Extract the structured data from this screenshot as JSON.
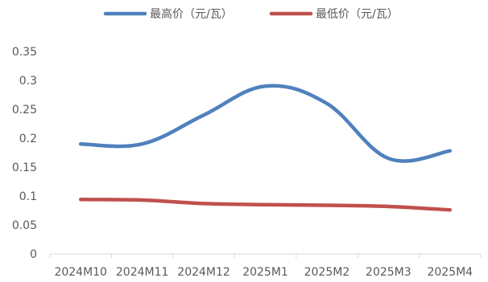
{
  "chart_data": {
    "type": "line",
    "title": "",
    "xlabel": "",
    "ylabel": "",
    "categories": [
      "2024M10",
      "2024M11",
      "2024M12",
      "2025M1",
      "2025M2",
      "2025M3",
      "2025M4"
    ],
    "ylim": [
      0,
      0.35
    ],
    "y_ticks": [
      "0",
      "0.05",
      "0.1",
      "0.15",
      "0.2",
      "0.25",
      "0.3",
      "0.35"
    ],
    "grid": false,
    "legend_position": "top",
    "series": [
      {
        "name": "最高价（元/瓦）",
        "color": "#4F81BD",
        "values": [
          0.19,
          0.19,
          0.24,
          0.29,
          0.26,
          0.165,
          0.178
        ]
      },
      {
        "name": "最低价（元/瓦）",
        "color": "#C0504D",
        "values": [
          0.094,
          0.093,
          0.087,
          0.085,
          0.084,
          0.082,
          0.076
        ]
      }
    ]
  }
}
